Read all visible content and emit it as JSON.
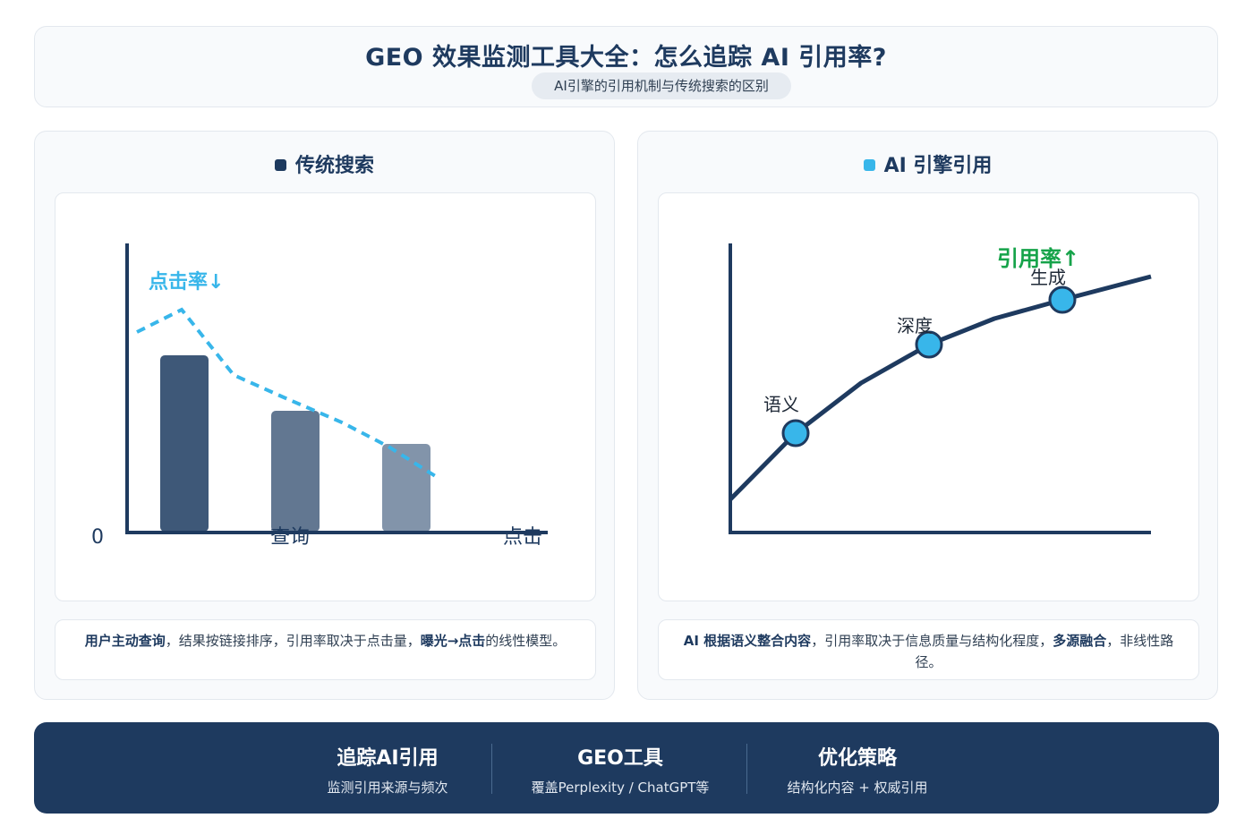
{
  "header": {
    "title": "GEO 效果监测工具大全：怎么追踪 AI 引用率?",
    "subtitle": "AI引擎的引用机制与传统搜索的区别"
  },
  "left_panel": {
    "title": "传统搜索",
    "dot_color": "#1e3a5f",
    "desc": {
      "p1": "用户主动查询",
      "p2": "，结果按链接排序，引用率取决于点击量，",
      "p3": "曝光→点击",
      "p4": "的线性模型。"
    },
    "chart": {
      "trend_label": "点击率↓",
      "origin_label": "0",
      "x_label_mid": "查询",
      "x_label_end": "点击",
      "bar_colors": [
        "#3e5878",
        "#627791",
        "#8294aa"
      ],
      "trend_color": "#38b6ea"
    }
  },
  "right_panel": {
    "title": "AI 引擎引用",
    "dot_color": "#38b6ea",
    "desc": {
      "p1": "AI 根据语义整合内容",
      "p2": "，引用率取决于信息质量与结构化程度，",
      "p3": "多源融合",
      "p4": "，非线性路径。"
    },
    "chart": {
      "trend_label": "引用率↑",
      "trend_color": "#16a34a",
      "point_color": "#38b6ea",
      "points": [
        "语义",
        "深度",
        "生成"
      ]
    }
  },
  "footer": [
    {
      "title": "追踪AI引用",
      "sub": "监测引用来源与频次"
    },
    {
      "title": "GEO工具",
      "sub": "覆盖Perplexity / ChatGPT等"
    },
    {
      "title": "优化策略",
      "sub": "结构化内容 + 权威引用"
    }
  ]
}
